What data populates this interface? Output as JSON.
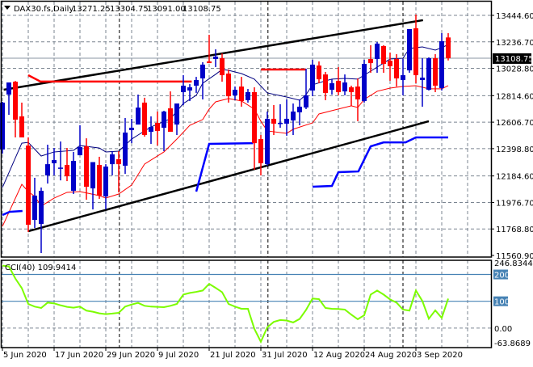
{
  "title": {
    "symbol": "DAX30.fs,Daily",
    "open": "13271.25",
    "high": "13304.75",
    "low": "13091.00",
    "close": "13108.75"
  },
  "current_price_label": "13108.75",
  "colors": {
    "bull": "#0000c8",
    "bear": "#ff0000",
    "ma_line": "#000080",
    "lower_line": "#ff0000",
    "trend_channel": "#000000",
    "support": "#0000ff",
    "resistance": "#ff0000",
    "cci": "#7cfc00",
    "cci_levels": "#4682b4"
  },
  "chart_data": [
    {
      "type": "candlestick",
      "title": "DAX30.fs,Daily",
      "ylim": [
        11560.9,
        13444.6
      ],
      "y_ticks": [
        "13444.60",
        "13236.70",
        "13028.80",
        "12814.60",
        "12606.70",
        "12398.80",
        "12184.60",
        "11976.70",
        "11768.80",
        "11560.90"
      ],
      "grid": true,
      "x_labels": [
        {
          "bar": 0,
          "label": "5 Jun 2020"
        },
        {
          "bar": 8,
          "label": "17 Jun 2020"
        },
        {
          "bar": 16,
          "label": "29 Jun 2020"
        },
        {
          "bar": 24,
          "label": "9 Jul 2020"
        },
        {
          "bar": 32,
          "label": "21 Jul 2020"
        },
        {
          "bar": 40,
          "label": "31 Jul 2020"
        },
        {
          "bar": 48,
          "label": "12 Aug 2020"
        },
        {
          "bar": 56,
          "label": "24 Aug 2020"
        },
        {
          "bar": 64,
          "label": "3 Sep 2020"
        }
      ],
      "candles_ohlc": [
        [
          12392,
          12766,
          12360,
          12760
        ],
        [
          12823,
          12918,
          12664,
          12918
        ],
        [
          12924,
          12930,
          12487,
          12626
        ],
        [
          12652,
          12760,
          12487,
          12487
        ],
        [
          12423,
          12487,
          11745,
          11802
        ],
        [
          11840,
          12170,
          11776,
          12030
        ],
        [
          11808,
          12094,
          11580,
          12068
        ],
        [
          12189,
          12430,
          12125,
          12277
        ],
        [
          12284,
          12404,
          12189,
          12309
        ],
        [
          12245,
          12455,
          12150,
          12250
        ],
        [
          12271,
          12404,
          12144,
          12182
        ],
        [
          12068,
          12373,
          12043,
          12303
        ],
        [
          12347,
          12582,
          12347,
          12411
        ],
        [
          12417,
          12480,
          11998,
          12100
        ],
        [
          12087,
          12293,
          11922,
          12293
        ],
        [
          12271,
          12335,
          12005,
          12030
        ],
        [
          12024,
          12277,
          11922,
          12258
        ],
        [
          12277,
          12379,
          12189,
          12354
        ],
        [
          12316,
          12379,
          12055,
          12277
        ],
        [
          12265,
          12639,
          12201,
          12525
        ],
        [
          12544,
          12633,
          12442,
          12563
        ],
        [
          12588,
          12823,
          12588,
          12721
        ],
        [
          12760,
          12798,
          12493,
          12506
        ],
        [
          12531,
          12652,
          12436,
          12569
        ],
        [
          12601,
          12690,
          12423,
          12538
        ],
        [
          12563,
          12696,
          12379,
          12690
        ],
        [
          12715,
          12848,
          12531,
          12531
        ],
        [
          12588,
          12753,
          12506,
          12753
        ],
        [
          12842,
          12975,
          12740,
          12893
        ],
        [
          12855,
          12905,
          12772,
          12880
        ],
        [
          12893,
          12962,
          12836,
          12937
        ],
        [
          12950,
          13077,
          12785,
          13058
        ],
        [
          13083,
          13292,
          13070,
          13070
        ],
        [
          13102,
          13178,
          13039,
          13121
        ],
        [
          13108,
          13146,
          12924,
          12975
        ],
        [
          12988,
          13020,
          12760,
          12810
        ],
        [
          12817,
          12886,
          12779,
          12861
        ],
        [
          12886,
          12962,
          12728,
          12772
        ],
        [
          12779,
          12867,
          12760,
          12842
        ],
        [
          12842,
          12880,
          12233,
          12442
        ],
        [
          12474,
          12506,
          12189,
          12284
        ],
        [
          12277,
          12690,
          12265,
          12633
        ],
        [
          12633,
          12741,
          12506,
          12595
        ],
        [
          12595,
          12747,
          12563,
          12601
        ],
        [
          12595,
          12785,
          12500,
          12633
        ],
        [
          12620,
          12753,
          12506,
          12690
        ],
        [
          12684,
          12785,
          12582,
          12728
        ],
        [
          12722,
          13026,
          12709,
          12817
        ],
        [
          12855,
          13096,
          12810,
          13058
        ],
        [
          13051,
          13083,
          12912,
          12943
        ],
        [
          12981,
          13001,
          12779,
          12836
        ],
        [
          12861,
          12943,
          12823,
          12912
        ],
        [
          12931,
          13039,
          12817,
          12842
        ],
        [
          12848,
          12981,
          12817,
          12918
        ],
        [
          12880,
          12893,
          12734,
          12842
        ],
        [
          12886,
          12950,
          12614,
          12785
        ],
        [
          12772,
          13096,
          12760,
          13064
        ],
        [
          13102,
          13210,
          12994,
          13070
        ],
        [
          13102,
          13235,
          12994,
          13223
        ],
        [
          13204,
          13210,
          12994,
          13064
        ],
        [
          13089,
          13153,
          12931,
          13045
        ],
        [
          13102,
          13140,
          12886,
          12950
        ],
        [
          12937,
          13102,
          12817,
          12975
        ],
        [
          13013,
          13337,
          12994,
          13337
        ],
        [
          13343,
          13451,
          12912,
          12975
        ],
        [
          12937,
          13108,
          12728,
          12956
        ],
        [
          12861,
          13115,
          12855,
          13108
        ],
        [
          13108,
          13140,
          12842,
          12893
        ],
        [
          12874,
          13305,
          12855,
          13242
        ],
        [
          13271.25,
          13304.75,
          13091,
          13108.75
        ]
      ],
      "month_separators_bar": [
        18.1,
        41.1,
        62
      ],
      "current_price": 13108.75,
      "overlays": {
        "ma_line": [
          [
            0,
            12094
          ],
          [
            3,
            12442
          ],
          [
            4,
            12448
          ],
          [
            6,
            12341
          ],
          [
            8,
            12373
          ],
          [
            11,
            12385
          ],
          [
            12,
            12423
          ],
          [
            15,
            12404
          ],
          [
            16,
            12373
          ],
          [
            18,
            12379
          ],
          [
            20,
            12474
          ],
          [
            21,
            12506
          ],
          [
            23,
            12569
          ],
          [
            26,
            12633
          ],
          [
            28,
            12753
          ],
          [
            30,
            12817
          ],
          [
            31,
            12912
          ],
          [
            33,
            12982
          ],
          [
            34,
            13020
          ],
          [
            35,
            13013
          ],
          [
            37,
            12988
          ],
          [
            39,
            12944
          ],
          [
            41,
            12836
          ],
          [
            44,
            12804
          ],
          [
            46,
            12779
          ],
          [
            47,
            12823
          ],
          [
            48,
            12900
          ],
          [
            50,
            12931
          ],
          [
            51,
            12944
          ],
          [
            53,
            12950
          ],
          [
            55,
            12944
          ],
          [
            57,
            13007
          ],
          [
            60,
            13102
          ],
          [
            62,
            13108
          ],
          [
            63,
            13185
          ],
          [
            65,
            13197
          ],
          [
            67,
            13172
          ],
          [
            68,
            13191
          ],
          [
            69,
            13216
          ]
        ],
        "lower_line": [
          [
            0,
            11789
          ],
          [
            3,
            12119
          ],
          [
            4,
            12062
          ],
          [
            5,
            12024
          ],
          [
            6,
            11948
          ],
          [
            8,
            12011
          ],
          [
            10,
            12056
          ],
          [
            12,
            12062
          ],
          [
            15,
            12030
          ],
          [
            16,
            12011
          ],
          [
            18,
            12043
          ],
          [
            20,
            12113
          ],
          [
            22,
            12278
          ],
          [
            25,
            12373
          ],
          [
            27,
            12474
          ],
          [
            29,
            12582
          ],
          [
            31,
            12627
          ],
          [
            32,
            12709
          ],
          [
            33,
            12766
          ],
          [
            35,
            12792
          ],
          [
            37,
            12773
          ],
          [
            39,
            12709
          ],
          [
            40,
            12614
          ],
          [
            41,
            12538
          ],
          [
            44,
            12519
          ],
          [
            45,
            12551
          ],
          [
            48,
            12601
          ],
          [
            49,
            12671
          ],
          [
            51,
            12697
          ],
          [
            54,
            12735
          ],
          [
            55,
            12722
          ],
          [
            56,
            12785
          ],
          [
            58,
            12849
          ],
          [
            60,
            12874
          ],
          [
            62,
            12887
          ],
          [
            64,
            12893
          ],
          [
            66,
            12868
          ],
          [
            68,
            12868
          ],
          [
            69,
            12893
          ]
        ],
        "trend_upper": [
          [
            0.2,
            12861
          ],
          [
            65.1,
            13407
          ]
        ],
        "trend_lower": [
          [
            4,
            11751
          ],
          [
            66,
            12614
          ]
        ],
        "resistance_1": [
          [
            4,
            12975
          ],
          [
            5.9,
            12925
          ],
          [
            29.3,
            12925
          ]
        ],
        "resistance_2": [
          [
            40,
            13020
          ],
          [
            47,
            13020
          ]
        ],
        "support_1": [
          [
            0,
            11878
          ],
          [
            1.1,
            11903
          ],
          [
            3.1,
            11910
          ]
        ],
        "support_2": [
          [
            30,
            12062
          ],
          [
            32,
            12436
          ],
          [
            38.8,
            12442
          ]
        ],
        "support_3": [
          [
            48,
            12100
          ],
          [
            51,
            12106
          ],
          [
            52,
            12214
          ],
          [
            55.1,
            12220
          ],
          [
            57,
            12417
          ],
          [
            59,
            12448
          ],
          [
            62.4,
            12448
          ],
          [
            64,
            12487
          ],
          [
            69,
            12487
          ]
        ]
      }
    },
    {
      "type": "line",
      "title": "CCI(40) 109.9414",
      "ylim": [
        -63.8689,
        246.8344
      ],
      "y_labels": [
        "246.8344",
        "0.00",
        "-63.8689"
      ],
      "levels": [
        "200",
        "100"
      ],
      "values": [
        233,
        230,
        185,
        149,
        90,
        80,
        75,
        95,
        92,
        85,
        79,
        76,
        80,
        65,
        61,
        55,
        52,
        54,
        57,
        80,
        88,
        94,
        83,
        80,
        79,
        78,
        83,
        90,
        125,
        131,
        135,
        140,
        165,
        150,
        134,
        90,
        80,
        72,
        72,
        -3,
        -51,
        3,
        23,
        30,
        28,
        21,
        34,
        68,
        110,
        108,
        75,
        72,
        71,
        69,
        50,
        33,
        48,
        125,
        140,
        125,
        107,
        95,
        69,
        65,
        140,
        101,
        35,
        66,
        38,
        109.9414
      ]
    }
  ]
}
